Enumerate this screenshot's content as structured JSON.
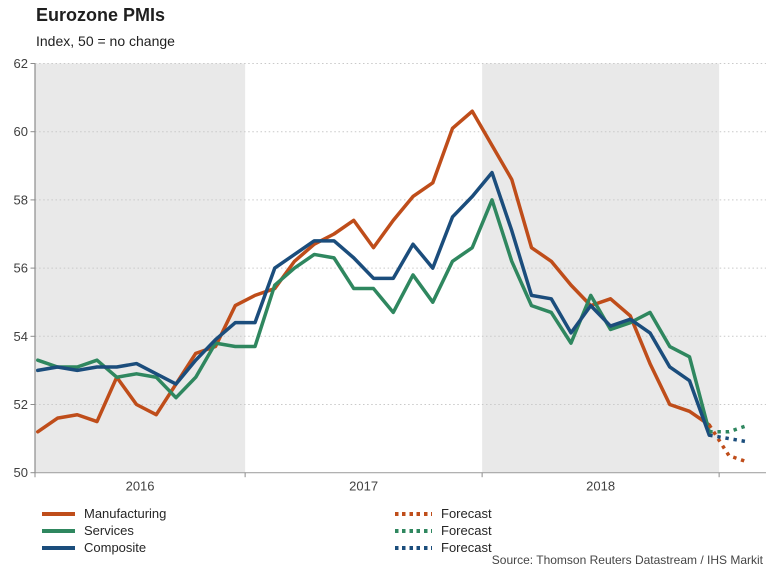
{
  "title": "Eurozone PMIs",
  "subtitle": "Index, 50 = no change",
  "source": "Source: Thomson Reuters Datastream / IHS Markit",
  "chart_data": {
    "type": "line",
    "title": "Eurozone PMIs",
    "subtitle": "Index, 50 = no change",
    "ylim": [
      50,
      62
    ],
    "yticks": [
      50,
      52,
      54,
      56,
      58,
      60,
      62
    ],
    "grid": "dotted horizontal gridlines",
    "legend_position": "bottom",
    "year_labels": [
      "2016",
      "2017",
      "2018"
    ],
    "shaded_year_bands": [
      "2016",
      "2018"
    ],
    "band_color": "#e9e9e9",
    "x_months": [
      "Feb 2016",
      "Mar 2016",
      "Apr 2016",
      "May 2016",
      "Jun 2016",
      "Jul 2016",
      "Aug 2016",
      "Sep 2016",
      "Oct 2016",
      "Nov 2016",
      "Dec 2016",
      "Jan 2017",
      "Feb 2017",
      "Mar 2017",
      "Apr 2017",
      "May 2017",
      "Jun 2017",
      "Jul 2017",
      "Aug 2017",
      "Sep 2017",
      "Oct 2017",
      "Nov 2017",
      "Dec 2017",
      "Jan 2018",
      "Feb 2018",
      "Mar 2018",
      "Apr 2018",
      "May 2018",
      "Jun 2018",
      "Jul 2018",
      "Aug 2018",
      "Sep 2018",
      "Oct 2018",
      "Nov 2018",
      "Dec 2018"
    ],
    "forecast_months": [
      "Jan 2019",
      "Feb 2019"
    ],
    "forecast_label": "Forecast",
    "series": [
      {
        "name": "Manufacturing",
        "color": "#BF4D1A",
        "values": [
          51.2,
          51.6,
          51.7,
          51.5,
          52.8,
          52.0,
          51.7,
          52.6,
          53.5,
          53.7,
          54.9,
          55.2,
          55.4,
          56.2,
          56.7,
          57.0,
          57.4,
          56.6,
          57.4,
          58.1,
          58.5,
          60.1,
          60.6,
          59.6,
          58.6,
          56.6,
          56.2,
          55.5,
          54.9,
          55.1,
          54.6,
          53.2,
          52.0,
          51.8,
          51.4
        ],
        "forecast_values": [
          50.5,
          50.3
        ]
      },
      {
        "name": "Services",
        "color": "#2F875F",
        "values": [
          53.3,
          53.1,
          53.1,
          53.3,
          52.8,
          52.9,
          52.8,
          52.2,
          52.8,
          53.8,
          53.7,
          53.7,
          55.5,
          56.0,
          56.4,
          56.3,
          55.4,
          55.4,
          54.7,
          55.8,
          55.0,
          56.2,
          56.6,
          58.0,
          56.2,
          54.9,
          54.7,
          53.8,
          55.2,
          54.2,
          54.4,
          54.7,
          53.7,
          53.4,
          51.2
        ],
        "forecast_values": [
          51.2,
          51.4
        ]
      },
      {
        "name": "Composite",
        "color": "#1B4D7C",
        "values": [
          53.0,
          53.1,
          53.0,
          53.1,
          53.1,
          53.2,
          52.9,
          52.6,
          53.3,
          53.9,
          54.4,
          54.4,
          56.0,
          56.4,
          56.8,
          56.8,
          56.3,
          55.7,
          55.7,
          56.7,
          56.0,
          57.5,
          58.1,
          58.8,
          57.1,
          55.2,
          55.1,
          54.1,
          54.9,
          54.3,
          54.5,
          54.1,
          53.1,
          52.7,
          51.1
        ],
        "forecast_values": [
          51.0,
          50.9
        ]
      }
    ]
  }
}
